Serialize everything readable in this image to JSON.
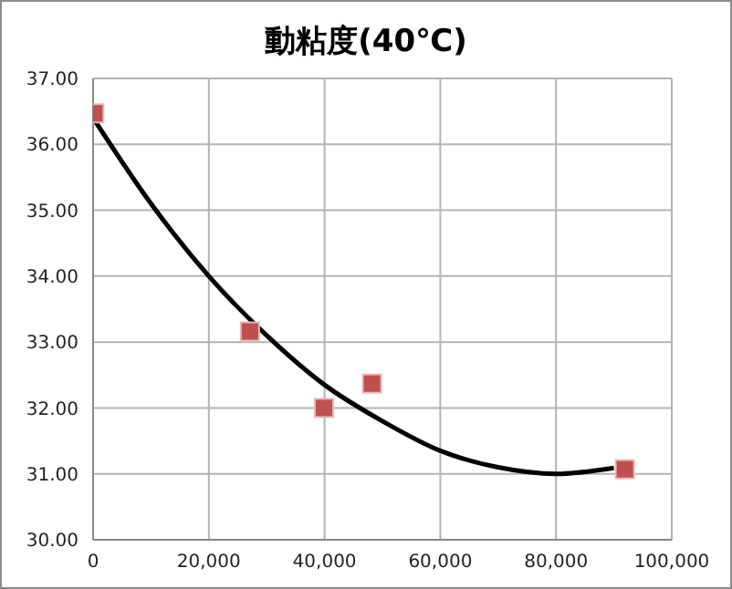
{
  "chart_data": {
    "type": "scatter",
    "title": "動粘度(40℃)",
    "xlim": [
      0,
      100000
    ],
    "xticks": [
      {
        "value": 0,
        "label": "0"
      },
      {
        "value": 20000,
        "label": "20,000"
      },
      {
        "value": 40000,
        "label": "40,000"
      },
      {
        "value": 60000,
        "label": "60,000"
      },
      {
        "value": 80000,
        "label": "80,000"
      },
      {
        "value": 100000,
        "label": "100,000"
      }
    ],
    "ylim": [
      30,
      37
    ],
    "yticks": [
      {
        "value": 30,
        "label": "30.00"
      },
      {
        "value": 31,
        "label": "31.00"
      },
      {
        "value": 32,
        "label": "32.00"
      },
      {
        "value": 33,
        "label": "33.00"
      },
      {
        "value": 34,
        "label": "34.00"
      },
      {
        "value": 35,
        "label": "35.00"
      },
      {
        "value": 36,
        "label": "36.00"
      },
      {
        "value": 37,
        "label": "37.00"
      }
    ],
    "grid": true,
    "legend": false,
    "series": [
      {
        "color": "#c0504d",
        "marker": "square",
        "x": [
          200,
          27100,
          39900,
          48200,
          91900
        ],
        "values": [
          36.47,
          33.16,
          32.0,
          32.37,
          31.07
        ]
      },
      {
        "type": "line",
        "color": "#000000",
        "marker": "none",
        "line_style": "solid",
        "x": [
          0,
          10000,
          20000,
          30000,
          40000,
          50000,
          60000,
          70000,
          80000,
          90000
        ],
        "values": [
          36.4,
          35.1,
          34.0,
          33.1,
          32.35,
          31.8,
          31.35,
          31.1,
          31.0,
          31.09
        ]
      }
    ]
  }
}
